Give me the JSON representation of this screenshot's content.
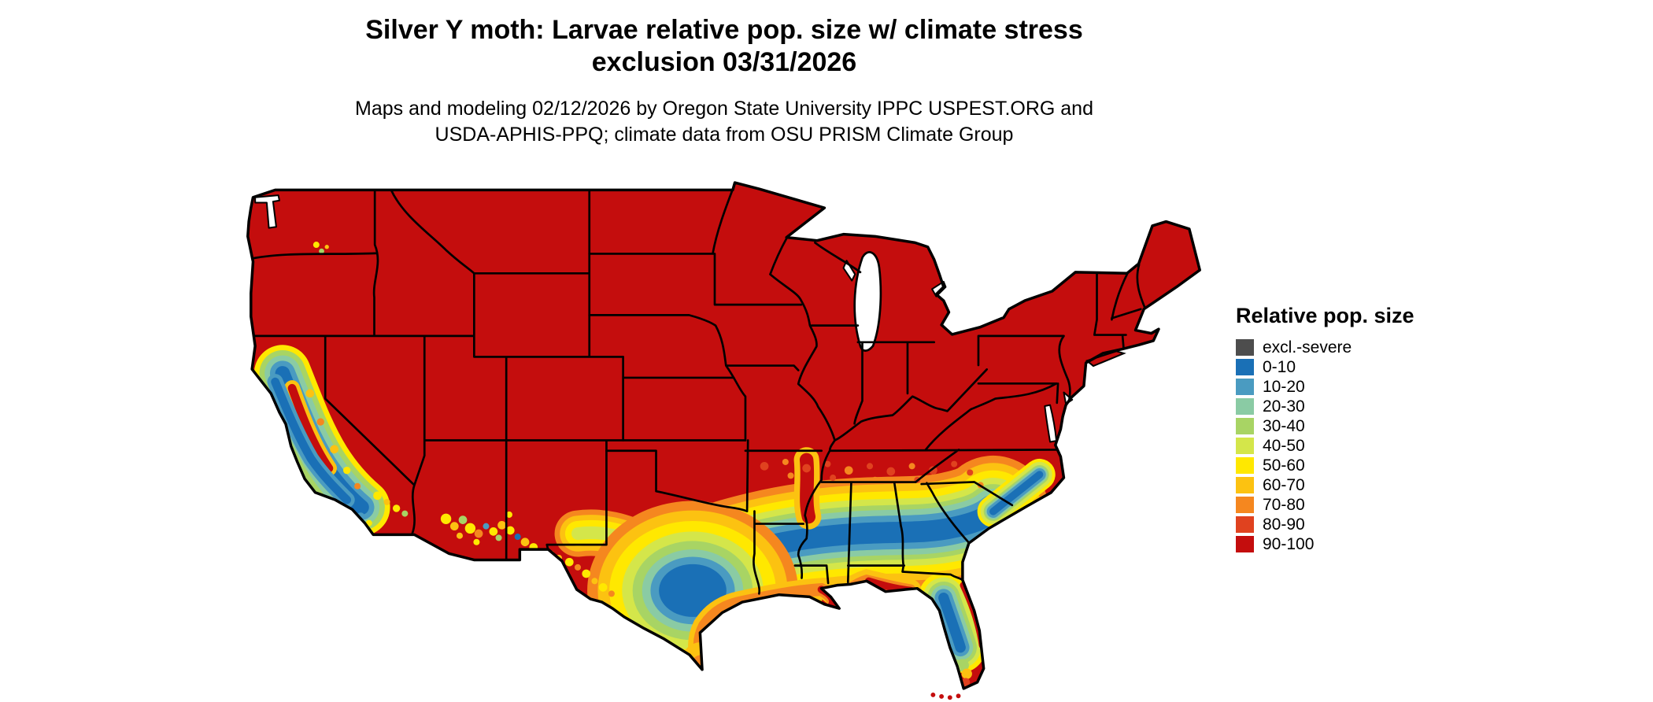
{
  "header": {
    "title_line1": "Silver Y moth: Larvae relative pop. size w/ climate stress",
    "title_line2": "exclusion 03/31/2026",
    "subtitle_line1": "Maps and modeling 02/12/2026 by Oregon State University IPPC USPEST.ORG and",
    "subtitle_line2": "USDA-APHIS-PPQ; climate data from OSU PRISM Climate Group"
  },
  "legend": {
    "title": "Relative pop. size",
    "items": [
      {
        "label": "excl.-severe",
        "color": "#4d4d4d"
      },
      {
        "label": "0-10",
        "color": "#1a70b6"
      },
      {
        "label": "10-20",
        "color": "#4a9bc1"
      },
      {
        "label": "20-30",
        "color": "#8acba4"
      },
      {
        "label": "30-40",
        "color": "#a8d464"
      },
      {
        "label": "40-50",
        "color": "#d4e64a"
      },
      {
        "label": "50-60",
        "color": "#ffe800"
      },
      {
        "label": "60-70",
        "color": "#fcc211"
      },
      {
        "label": "70-80",
        "color": "#f5871f"
      },
      {
        "label": "80-90",
        "color": "#e0421f"
      },
      {
        "label": "90-100",
        "color": "#c40d0d"
      }
    ]
  },
  "map": {
    "background": "#ffffff",
    "outline_color": "#000000",
    "base_fill_class": "90-100"
  }
}
